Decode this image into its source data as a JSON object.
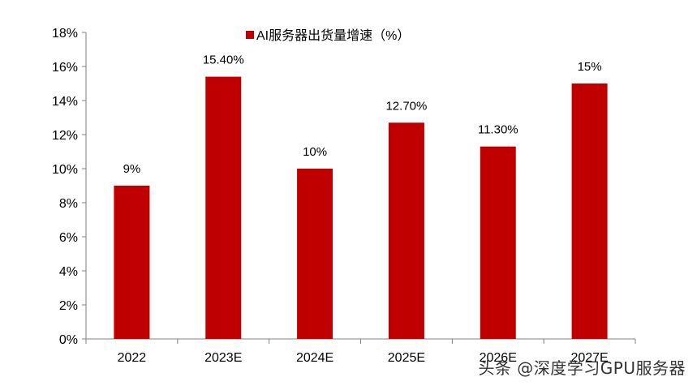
{
  "chart_data": {
    "type": "bar",
    "categories": [
      "2022",
      "2023E",
      "2024E",
      "2025E",
      "2026E",
      "2027E"
    ],
    "series": [
      {
        "name": "AI服务器出货量增速（%）",
        "values": [
          9,
          15.4,
          10,
          12.7,
          11.3,
          15
        ]
      }
    ],
    "data_labels": [
      "9%",
      "15.40%",
      "10%",
      "12.70%",
      "11.30%",
      "15%"
    ],
    "ylim": [
      0,
      18
    ],
    "yticks": [
      0,
      2,
      4,
      6,
      8,
      10,
      12,
      14,
      16,
      18
    ],
    "ytick_format": "%",
    "grid": false,
    "legend_position": "top-center",
    "colors": {
      "bar": "#C00000",
      "axis": "#808080",
      "text": "#000000"
    }
  },
  "watermark": "头条 @深度学习GPU服务器"
}
